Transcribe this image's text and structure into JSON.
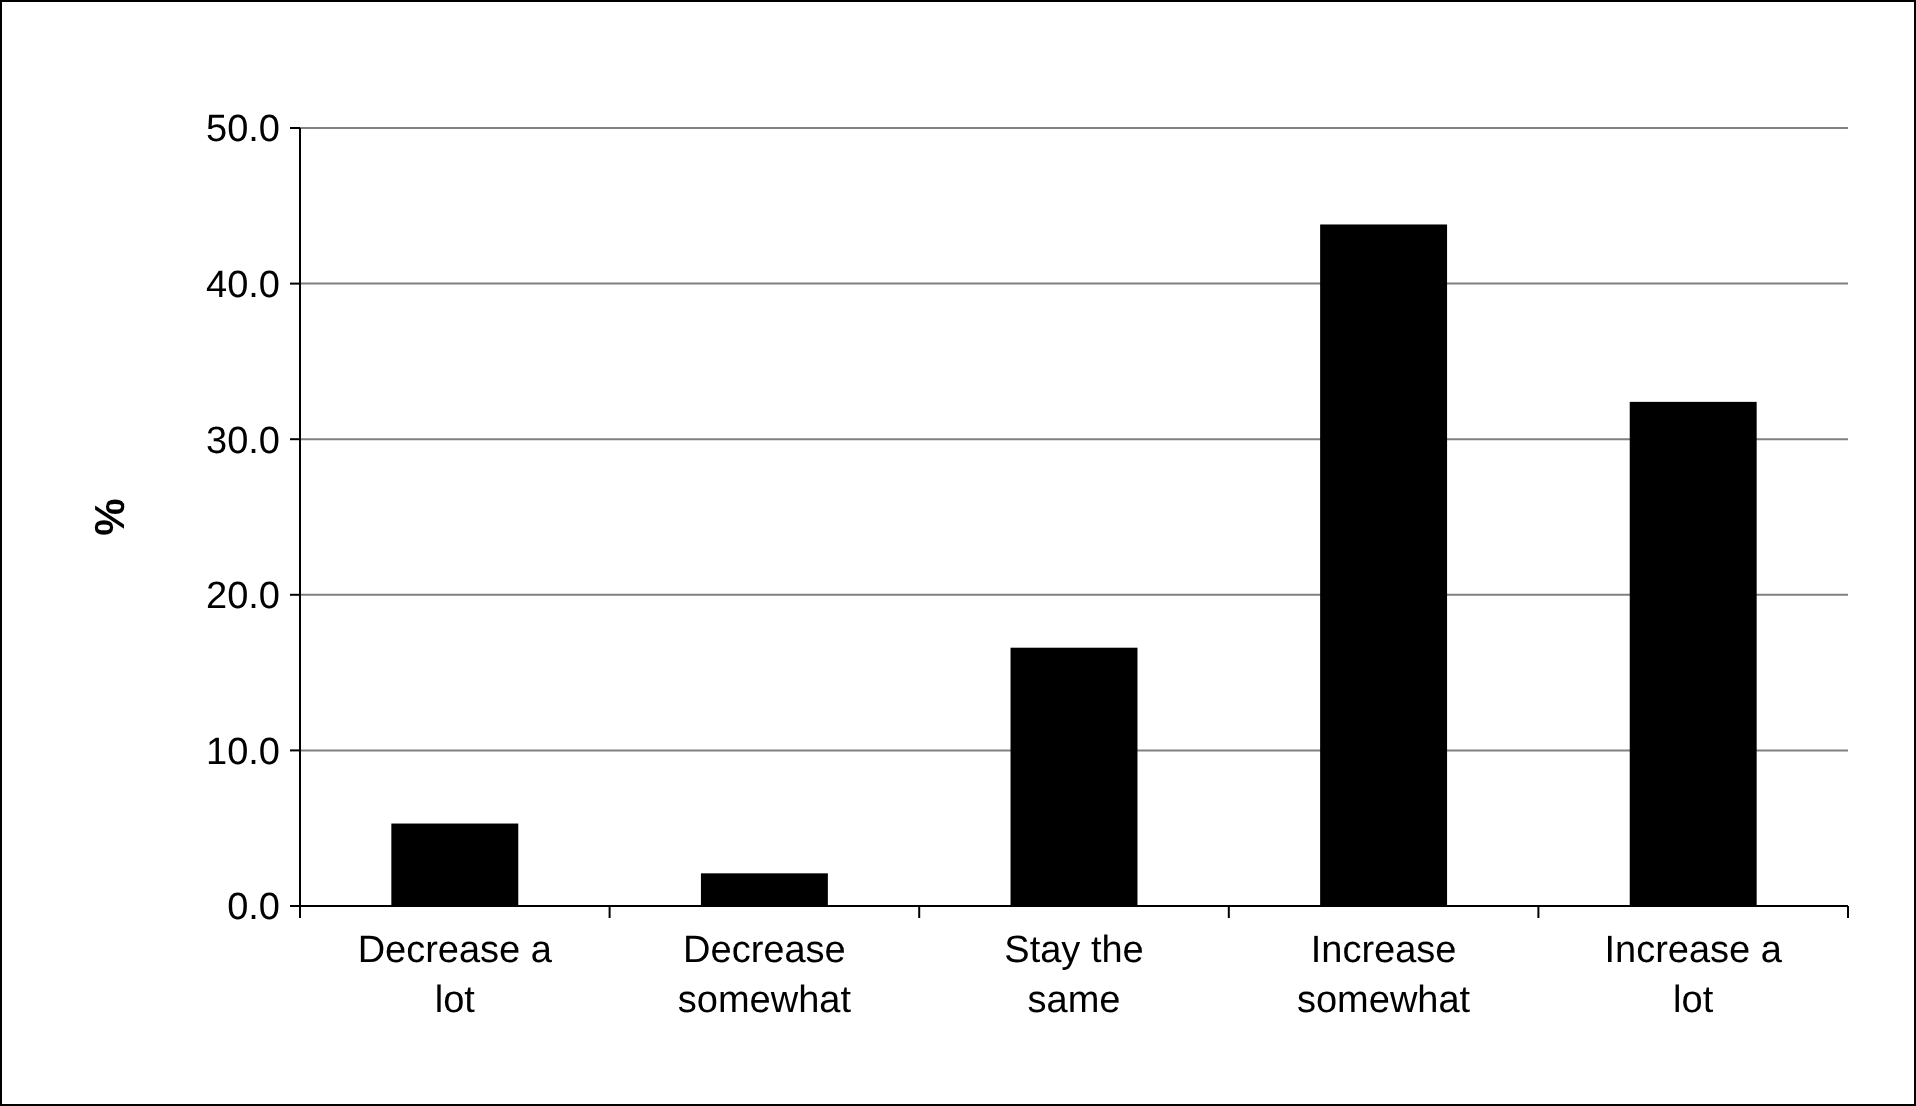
{
  "chart_data": {
    "type": "bar",
    "ylabel": "%",
    "categories": [
      "Decrease a lot",
      "Decrease somewhat",
      "Stay the same",
      "Increase somewhat",
      "Increase a lot"
    ],
    "values": [
      5.3,
      2.1,
      16.6,
      43.8,
      32.4
    ],
    "color": "#000000",
    "ylim": [
      0,
      50
    ],
    "yticks": [
      {
        "value": 0,
        "label": "0.0"
      },
      {
        "value": 10,
        "label": "10.0"
      },
      {
        "value": 20,
        "label": "20.0"
      },
      {
        "value": 30,
        "label": "30.0"
      },
      {
        "value": 40,
        "label": "40.0"
      },
      {
        "value": 50,
        "label": "50.0"
      }
    ],
    "grid": "y"
  }
}
